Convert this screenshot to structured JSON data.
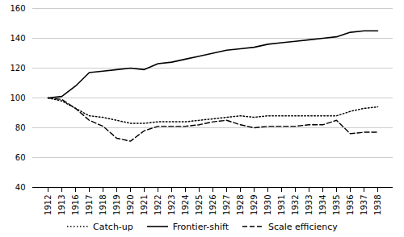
{
  "chart_data": {
    "type": "line",
    "categories": [
      "1912",
      "1913",
      "1916",
      "1917",
      "1918",
      "1919",
      "1920",
      "1921",
      "1922",
      "1923",
      "1924",
      "1925",
      "1926",
      "1927",
      "1928",
      "1929",
      "1930",
      "1931",
      "1932",
      "1933",
      "1934",
      "1935",
      "1936",
      "1937",
      "1938"
    ],
    "series": [
      {
        "name": "Catch-up",
        "color": "#000000",
        "line_style": "dotted",
        "values": [
          100,
          98,
          93,
          88,
          87,
          85,
          83,
          83,
          84,
          84,
          84,
          85,
          86,
          87,
          88,
          87,
          88,
          88,
          88,
          88,
          88,
          88,
          91,
          93,
          94
        ]
      },
      {
        "name": "Frontier-shift",
        "color": "#000000",
        "line_style": "solid",
        "values": [
          100,
          101,
          108,
          117,
          118,
          119,
          120,
          119,
          123,
          124,
          126,
          128,
          130,
          132,
          133,
          134,
          136,
          137,
          138,
          139,
          140,
          141,
          144,
          145,
          145
        ]
      },
      {
        "name": "Scale efficiency",
        "color": "#000000",
        "line_style": "dashed",
        "values": [
          100,
          99,
          93,
          85,
          81,
          73,
          71,
          78,
          81,
          81,
          81,
          82,
          84,
          85,
          82,
          80,
          81,
          81,
          81,
          82,
          82,
          85,
          76,
          77,
          77
        ]
      }
    ],
    "ylim": [
      40,
      160
    ],
    "yticks": [
      40,
      60,
      80,
      100,
      120,
      140,
      160
    ],
    "grid": true,
    "legend": "bottom"
  }
}
